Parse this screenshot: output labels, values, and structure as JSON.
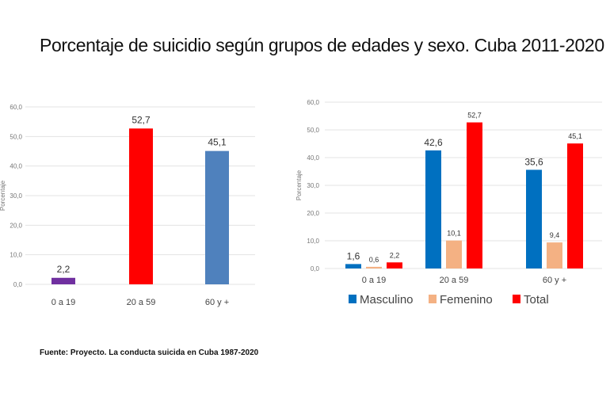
{
  "title": "Porcentaje de suicidio según grupos de edades y sexo. Cuba 2011-2020",
  "source": "Fuente: Proyecto. La conducta suicida en Cuba 1987-2020",
  "chart_data": [
    {
      "type": "bar",
      "ylabel": "Porcentaje",
      "ylim": [
        0,
        60
      ],
      "yticks": [
        "0,0",
        "10,0",
        "20,0",
        "30,0",
        "40,0",
        "50,0",
        "60,0"
      ],
      "grid": true,
      "categories": [
        "0 a 19",
        "20 a 59",
        "60 y +"
      ],
      "values": [
        2.2,
        52.7,
        45.1
      ],
      "data_labels": [
        "2,2",
        "52,7",
        "45,1"
      ],
      "colors": [
        "#7030a0",
        "#ff0000",
        "#4f81bd"
      ]
    },
    {
      "type": "bar",
      "ylabel": "Porcentaje",
      "ylim": [
        0,
        60
      ],
      "yticks": [
        "0,0",
        "10,0",
        "20,0",
        "30,0",
        "40,0",
        "50,0",
        "60,0"
      ],
      "grid": true,
      "legend": "bottom",
      "categories": [
        "0 a 19",
        "20 a 59",
        "60 y +"
      ],
      "series": [
        {
          "name": "Masculino",
          "values": [
            1.6,
            42.6,
            35.6
          ],
          "data_labels": [
            "1,6",
            "42,6",
            "35,6"
          ],
          "color": "#0070c0"
        },
        {
          "name": "Femenino",
          "values": [
            0.6,
            10.1,
            9.4
          ],
          "data_labels": [
            "0,6",
            "10,1",
            "9,4"
          ],
          "color": "#f4b183"
        },
        {
          "name": "Total",
          "values": [
            2.2,
            52.7,
            45.1
          ],
          "data_labels": [
            "2,2",
            "52,7",
            "45,1"
          ],
          "color": "#ff0000"
        }
      ]
    }
  ]
}
